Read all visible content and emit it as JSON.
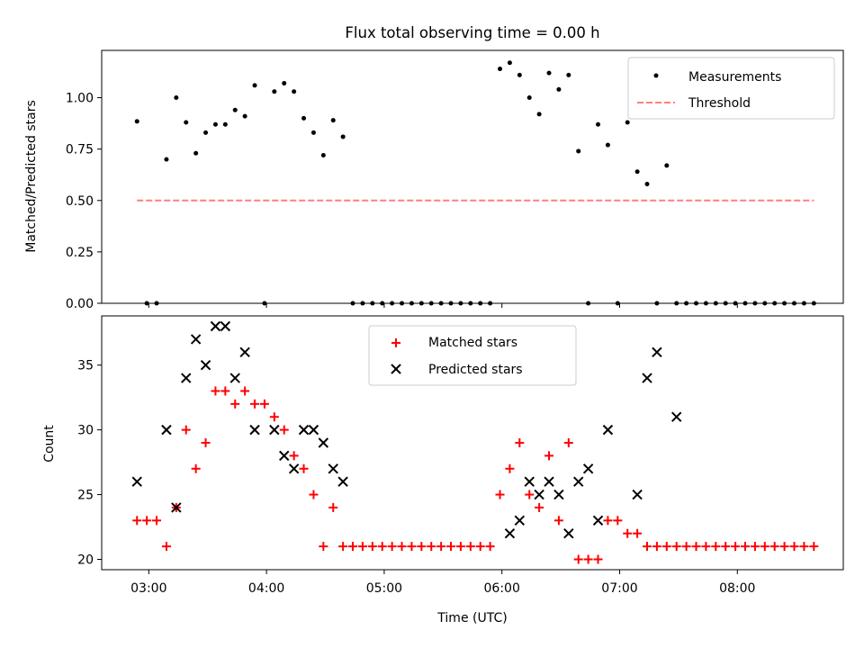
{
  "chart_data": [
    {
      "type": "scatter",
      "title": "Flux total observing time = 0.00 h",
      "xlabel": "",
      "ylabel": "Matched/Predicted stars",
      "xlim": [
        "02:36",
        "08:54"
      ],
      "ylim": [
        0,
        1.23
      ],
      "yticks": [
        "0.00",
        "0.25",
        "0.50",
        "0.75",
        "1.00"
      ],
      "xticks": [
        "03:00",
        "04:00",
        "05:00",
        "06:00",
        "07:00",
        "08:00"
      ],
      "legend_position": "top-right",
      "series": [
        {
          "name": "Measurements",
          "color": "#000000",
          "marker": "dot",
          "x": [
            "02:54",
            "02:59",
            "03:04",
            "03:09",
            "03:14",
            "03:19",
            "03:24",
            "03:29",
            "03:34",
            "03:39",
            "03:44",
            "03:49",
            "03:54",
            "03:59",
            "04:04",
            "04:09",
            "04:14",
            "04:19",
            "04:24",
            "04:29",
            "04:34",
            "04:39",
            "04:44",
            "04:49",
            "04:54",
            "04:59",
            "05:04",
            "05:09",
            "05:14",
            "05:19",
            "05:24",
            "05:29",
            "05:34",
            "05:39",
            "05:44",
            "05:49",
            "05:54",
            "05:59",
            "06:04",
            "06:09",
            "06:14",
            "06:19",
            "06:24",
            "06:29",
            "06:34",
            "06:39",
            "06:44",
            "06:49",
            "06:54",
            "06:59",
            "07:04",
            "07:09",
            "07:14",
            "07:19",
            "07:24",
            "07:29",
            "07:34",
            "07:39",
            "07:44",
            "07:49",
            "07:54",
            "07:59",
            "08:04",
            "08:09",
            "08:14",
            "08:19",
            "08:24",
            "08:29",
            "08:34",
            "08:39"
          ],
          "y": [
            0.885,
            0,
            0,
            0.7,
            1.0,
            0.88,
            0.73,
            0.83,
            0.87,
            0.87,
            0.94,
            0.91,
            1.06,
            0,
            1.03,
            1.07,
            1.03,
            0.9,
            0.83,
            0.72,
            0.89,
            0.81,
            0,
            0,
            0,
            0,
            0,
            0,
            0,
            0,
            0,
            0,
            0,
            0,
            0,
            0,
            0,
            1.14,
            1.17,
            1.11,
            1.0,
            0.92,
            1.12,
            1.04,
            1.11,
            0.74,
            0,
            0.87,
            0.77,
            0,
            0.88,
            0.64,
            0.58,
            0,
            0.67,
            0,
            0,
            0,
            0,
            0,
            0,
            0,
            0,
            0,
            0,
            0,
            0,
            0,
            0,
            0
          ]
        },
        {
          "name": "Threshold",
          "color": "#ff7f7f",
          "style": "dashed",
          "x": [
            "02:54",
            "08:39"
          ],
          "y": [
            0.5,
            0.5
          ]
        }
      ]
    },
    {
      "type": "scatter",
      "title": "",
      "xlabel": "Time (UTC)",
      "ylabel": "Count",
      "xlim": [
        "02:36",
        "08:54"
      ],
      "ylim": [
        19.2,
        38.8
      ],
      "yticks": [
        "20",
        "25",
        "30",
        "35"
      ],
      "xticks": [
        "03:00",
        "04:00",
        "05:00",
        "06:00",
        "07:00",
        "08:00"
      ],
      "legend_position": "top-center",
      "series": [
        {
          "name": "Matched stars",
          "color": "#ff0000",
          "marker": "plus",
          "x": [
            "02:54",
            "02:59",
            "03:04",
            "03:09",
            "03:14",
            "03:19",
            "03:24",
            "03:29",
            "03:34",
            "03:39",
            "03:44",
            "03:49",
            "03:54",
            "03:59",
            "04:04",
            "04:09",
            "04:14",
            "04:19",
            "04:24",
            "04:29",
            "04:34",
            "04:39",
            "04:44",
            "04:49",
            "04:54",
            "04:59",
            "05:04",
            "05:09",
            "05:14",
            "05:19",
            "05:24",
            "05:29",
            "05:34",
            "05:39",
            "05:44",
            "05:49",
            "05:54",
            "05:59",
            "06:04",
            "06:09",
            "06:14",
            "06:19",
            "06:24",
            "06:29",
            "06:34",
            "06:39",
            "06:44",
            "06:49",
            "06:54",
            "06:59",
            "07:04",
            "07:09",
            "07:14",
            "07:19",
            "07:24",
            "07:29",
            "07:34",
            "07:39",
            "07:44",
            "07:49",
            "07:54",
            "07:59",
            "08:04",
            "08:09",
            "08:14",
            "08:19",
            "08:24",
            "08:29",
            "08:34",
            "08:39"
          ],
          "y": [
            23,
            23,
            23,
            21,
            24,
            30,
            27,
            29,
            33,
            33,
            32,
            33,
            32,
            32,
            31,
            30,
            28,
            27,
            25,
            21,
            24,
            21,
            21,
            21,
            21,
            21,
            21,
            21,
            21,
            21,
            21,
            21,
            21,
            21,
            21,
            21,
            21,
            25,
            27,
            29,
            25,
            24,
            28,
            23,
            29,
            20,
            20,
            20,
            23,
            23,
            22,
            22,
            21,
            21,
            21,
            21,
            21,
            21,
            21,
            21,
            21,
            21,
            21,
            21,
            21,
            21,
            21,
            21,
            21,
            21
          ]
        },
        {
          "name": "Predicted stars",
          "color": "#000000",
          "marker": "x",
          "x": [
            "02:54",
            "03:09",
            "03:14",
            "03:19",
            "03:24",
            "03:29",
            "03:34",
            "03:39",
            "03:44",
            "03:49",
            "03:54",
            "04:04",
            "04:09",
            "04:14",
            "04:19",
            "04:24",
            "04:29",
            "04:34",
            "04:39",
            "06:04",
            "06:09",
            "06:14",
            "06:19",
            "06:24",
            "06:29",
            "06:34",
            "06:39",
            "06:44",
            "06:49",
            "06:54",
            "07:09",
            "07:14",
            "07:19",
            "07:29"
          ],
          "y": [
            26,
            30,
            24,
            34,
            37,
            35,
            38,
            38,
            34,
            36,
            30,
            30,
            28,
            27,
            30,
            30,
            29,
            27,
            26,
            22,
            23,
            26,
            25,
            26,
            25,
            22,
            26,
            27,
            23,
            30,
            25,
            34,
            36,
            31
          ]
        }
      ]
    }
  ]
}
